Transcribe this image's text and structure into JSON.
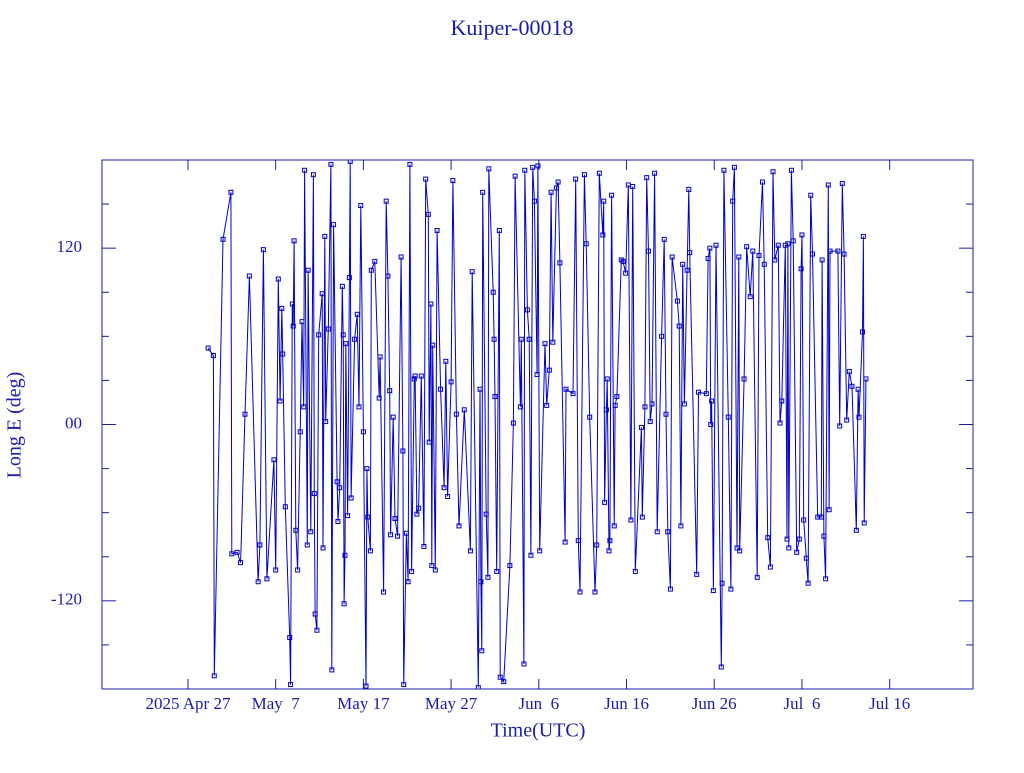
{
  "chart_data": {
    "type": "line",
    "title": "Kuiper-00018",
    "x_label": "Time(UTC)",
    "y_label": "Long E (deg)",
    "color": "#0000c8",
    "markers": true,
    "xlim": [
      107.2,
      206.5
    ],
    "xticks": [
      {
        "value": 117,
        "label": "2025 Apr 27"
      },
      {
        "value": 127,
        "label": "May  7"
      },
      {
        "value": 137,
        "label": "May 17"
      },
      {
        "value": 147,
        "label": "May 27"
      },
      {
        "value": 157,
        "label": "Jun  6"
      },
      {
        "value": 167,
        "label": "Jun 16"
      },
      {
        "value": 177,
        "label": "Jun 26"
      },
      {
        "value": 187,
        "label": "Jul  6"
      },
      {
        "value": 197,
        "label": "Jul 16"
      }
    ],
    "ylim": [
      -180,
      180
    ],
    "yticks": [
      -120,
      {
        "value": 0,
        "label": "00"
      },
      120
    ],
    "yminorticks": [
      -150,
      -90,
      -60,
      -30,
      30,
      60,
      90,
      150
    ],
    "x": [
      119.3,
      119.9,
      120.0,
      121.0,
      121.9,
      122.0,
      122.6,
      123.0,
      123.5,
      124.0,
      125.0,
      125.2,
      125.6,
      126.0,
      126.8,
      127.0,
      127.3,
      127.5,
      127.7,
      127.8,
      128.1,
      128.6,
      128.7,
      128.9,
      129.0,
      129.1,
      129.3,
      129.5,
      129.8,
      130.0,
      130.2,
      130.3,
      130.6,
      130.7,
      131.0,
      131.3,
      131.4,
      131.5,
      131.7,
      131.9,
      132.3,
      132.4,
      132.6,
      132.7,
      133.0,
      133.3,
      133.4,
      133.6,
      134.0,
      134.1,
      134.3,
      134.6,
      134.7,
      134.8,
      134.9,
      135.0,
      135.2,
      135.4,
      135.5,
      135.6,
      136.0,
      136.3,
      136.5,
      136.7,
      137.0,
      137.3,
      137.4,
      137.5,
      137.8,
      137.9,
      138.3,
      138.8,
      138.9,
      139.3,
      139.6,
      139.8,
      140.0,
      140.1,
      140.4,
      140.6,
      140.9,
      141.3,
      141.5,
      141.6,
      141.9,
      142.1,
      142.3,
      142.5,
      142.8,
      142.9,
      143.1,
      143.3,
      143.6,
      143.9,
      144.1,
      144.4,
      144.5,
      144.7,
      144.8,
      144.9,
      145.2,
      145.4,
      145.8,
      146.2,
      146.4,
      146.6,
      147.0,
      147.2,
      147.6,
      147.9,
      148.5,
      149.2,
      149.4,
      150.1,
      150.3,
      150.4,
      150.5,
      150.6,
      151.0,
      151.2,
      151.3,
      151.8,
      151.9,
      152.0,
      152.2,
      152.5,
      152.6,
      153.0,
      153.7,
      154.1,
      154.3,
      154.9,
      155.0,
      155.3,
      155.4,
      155.7,
      155.9,
      156.1,
      156.3,
      156.5,
      156.8,
      156.9,
      157.1,
      157.7,
      157.9,
      158.2,
      158.4,
      158.6,
      159.0,
      159.2,
      159.4,
      160.0,
      160.1,
      160.9,
      161.2,
      161.5,
      161.7,
      162.2,
      162.4,
      162.8,
      163.4,
      163.6,
      163.9,
      164.3,
      164.4,
      164.5,
      164.7,
      164.8,
      165.0,
      165.1,
      165.3,
      165.6,
      165.7,
      165.9,
      166.4,
      166.6,
      166.9,
      167.2,
      167.5,
      167.7,
      168.0,
      168.7,
      168.8,
      169.1,
      169.3,
      169.5,
      169.7,
      169.9,
      170.2,
      170.5,
      171.0,
      171.3,
      171.5,
      171.7,
      172.0,
      172.2,
      172.8,
      173.0,
      173.2,
      173.4,
      173.6,
      173.9,
      174.1,
      174.2,
      175.0,
      175.2,
      176.1,
      176.3,
      176.5,
      176.6,
      176.7,
      176.9,
      177.2,
      177.8,
      177.9,
      178.1,
      178.6,
      178.9,
      179.1,
      179.3,
      179.6,
      179.8,
      179.9,
      180.4,
      180.7,
      181.1,
      181.4,
      181.9,
      182.1,
      182.5,
      182.7,
      183.1,
      183.4,
      183.7,
      183.9,
      184.3,
      184.5,
      184.7,
      185.1,
      185.3,
      185.4,
      185.5,
      185.8,
      186.0,
      186.4,
      186.7,
      186.9,
      187.0,
      187.2,
      187.5,
      187.7,
      188.0,
      188.2,
      188.8,
      189.2,
      189.3,
      189.5,
      189.7,
      190.0,
      190.1,
      190.2,
      191.1,
      191.3,
      191.6,
      191.8,
      192.1,
      192.4,
      192.7,
      193.2,
      193.4,
      193.5,
      193.9,
      194.0,
      194.1,
      194.3
    ],
    "values": [
      52,
      47,
      -171,
      126,
      158,
      -88,
      -87,
      -94,
      7,
      101,
      -107,
      -82,
      119,
      -105,
      -24,
      -99,
      99,
      16,
      79,
      48,
      -56,
      -145,
      -177,
      82,
      67,
      125,
      -72,
      -99,
      -5,
      70,
      12,
      173,
      -82,
      105,
      -73,
      170,
      -47,
      -129,
      -140,
      61,
      89,
      -84,
      128,
      2,
      65,
      177,
      -167,
      136,
      -39,
      -66,
      -43,
      94,
      61,
      -122,
      -89,
      55,
      -62,
      100,
      179,
      -50,
      58,
      75,
      12,
      149,
      -5,
      -178,
      -30,
      -63,
      -86,
      105,
      111,
      18,
      46,
      -114,
      152,
      101,
      23,
      -75,
      5,
      -64,
      -76,
      114,
      -18,
      -177,
      -74,
      -107,
      177,
      -100,
      31,
      33,
      -61,
      -57,
      33,
      -83,
      167,
      143,
      -12,
      82,
      -96,
      54,
      -99,
      132,
      24,
      -43,
      43,
      -49,
      29,
      166,
      7,
      -69,
      10,
      -86,
      104,
      -179,
      24,
      -107,
      -154,
      158,
      -61,
      -104,
      174,
      90,
      58,
      19,
      -100,
      132,
      -172,
      -175,
      -96,
      1,
      169,
      12,
      58,
      -163,
      173,
      78,
      58,
      -89,
      175,
      152,
      34,
      176,
      -86,
      55,
      13,
      37,
      158,
      56,
      161,
      165,
      110,
      -80,
      24,
      21,
      167,
      -79,
      -114,
      170,
      123,
      5,
      -114,
      -82,
      171,
      129,
      152,
      -53,
      10,
      31,
      -86,
      -79,
      156,
      -69,
      13,
      19,
      112,
      111,
      103,
      163,
      -65,
      162,
      -100,
      -2,
      -63,
      12,
      168,
      118,
      2,
      14,
      171,
      -73,
      60,
      126,
      7,
      -73,
      -112,
      114,
      84,
      67,
      -69,
      109,
      14,
      105,
      160,
      117,
      -102,
      22,
      21,
      113,
      120,
      0,
      16,
      -113,
      122,
      -165,
      -108,
      173,
      5,
      -112,
      152,
      175,
      -84,
      114,
      -86,
      31,
      121,
      87,
      118,
      -104,
      115,
      165,
      109,
      -77,
      -97,
      172,
      112,
      122,
      1,
      16,
      122,
      -78,
      123,
      -84,
      173,
      125,
      -87,
      -78,
      106,
      129,
      -65,
      -91,
      -108,
      156,
      116,
      -63,
      -63,
      112,
      -76,
      -105,
      163,
      -58,
      118,
      118,
      -1,
      164,
      116,
      3,
      36,
      26,
      -72,
      24,
      5,
      63,
      128,
      -67,
      31
    ]
  }
}
